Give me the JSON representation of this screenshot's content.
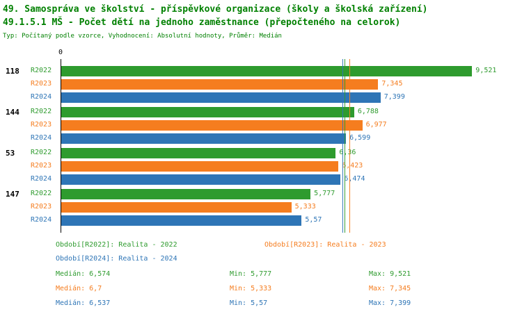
{
  "header": {
    "title_line1": "49. Samospráva ve školství - příspěvkové organizace (školy a školská zařízení)",
    "title_line2": "49.1.5.1 MŠ - Počet dětí na jednoho zaměstnance (přepočteného na celorok)",
    "subtitle": "Typ: Počítaný podle vzorce, Vyhodnocení: Absolutní hodnoty, Průměr: Medián"
  },
  "colors": {
    "R2022": "#2e9b2e",
    "R2023": "#f57d1f",
    "R2024": "#2e75b6",
    "title": "#008000",
    "axis": "#000000"
  },
  "chart_data": {
    "type": "bar",
    "orientation": "horizontal",
    "title": "49.1.5.1 MŠ - Počet dětí na jednoho zaměstnance (přepočteného na celorok)",
    "x_zero_label": "0",
    "xlim": [
      0,
      10.3
    ],
    "grid": false,
    "series_names": [
      "R2022",
      "R2023",
      "R2024"
    ],
    "groups": [
      {
        "label": "118",
        "values": [
          9.521,
          7.345,
          7.399
        ],
        "value_labels": [
          "9,521",
          "7,345",
          "7,399"
        ]
      },
      {
        "label": "144",
        "values": [
          6.788,
          6.977,
          6.599
        ],
        "value_labels": [
          "6,788",
          "6,977",
          "6,599"
        ]
      },
      {
        "label": "53",
        "values": [
          6.36,
          6.423,
          6.474
        ],
        "value_labels": [
          "6,36",
          "6,423",
          "6,474"
        ]
      },
      {
        "label": "147",
        "values": [
          5.777,
          5.333,
          5.57
        ],
        "value_labels": [
          "5,777",
          "5,333",
          "5,57"
        ]
      }
    ],
    "median_lines": [
      {
        "series": "R2022",
        "value": 6.574
      },
      {
        "series": "R2023",
        "value": 6.7
      },
      {
        "series": "R2024",
        "value": 6.537
      }
    ]
  },
  "legend": [
    {
      "series": "R2022",
      "label": "Období[R2022]: Realita - 2022"
    },
    {
      "series": "R2023",
      "label": "Období[R2023]: Realita - 2023"
    },
    {
      "series": "R2024",
      "label": "Období[R2024]: Realita - 2024"
    }
  ],
  "stats": [
    {
      "series": "R2022",
      "median_label": "Medián: 6,574",
      "min_label": "Min: 5,777",
      "max_label": "Max: 9,521",
      "median": 6.574,
      "min": 5.777,
      "max": 9.521
    },
    {
      "series": "R2023",
      "median_label": "Medián: 6,7",
      "min_label": "Min: 5,333",
      "max_label": "Max: 7,345",
      "median": 6.7,
      "min": 5.333,
      "max": 7.345
    },
    {
      "series": "R2024",
      "median_label": "Medián: 6,537",
      "min_label": "Min: 5,57",
      "max_label": "Max: 7,399",
      "median": 6.537,
      "min": 5.57,
      "max": 7.399
    }
  ]
}
